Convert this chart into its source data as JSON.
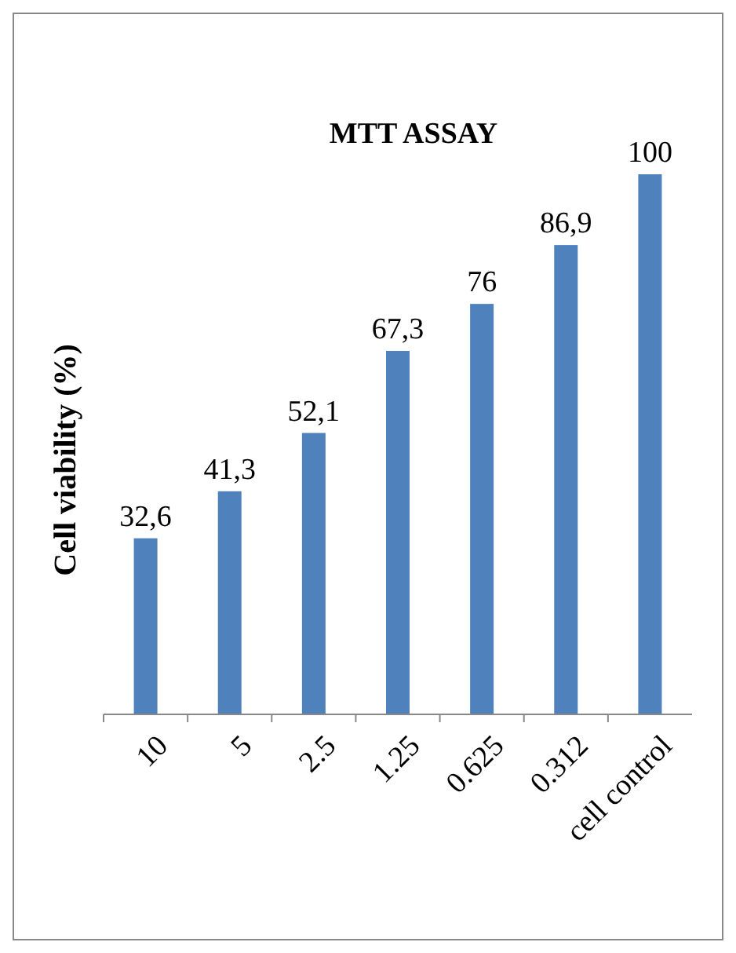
{
  "chart_data": {
    "type": "bar",
    "title": "MTT ASSAY",
    "ylabel": "Cell viability (%)",
    "categories": [
      "10",
      "5",
      "2.5",
      "1.25",
      "0.625",
      "0.312",
      "cell control"
    ],
    "values": [
      32.6,
      41.3,
      52.1,
      67.3,
      76,
      86.9,
      100
    ],
    "value_labels": [
      "32,6",
      "41,3",
      "52,1",
      "67,3",
      "76",
      "86,9",
      "100"
    ],
    "color": "#4f81bd"
  }
}
